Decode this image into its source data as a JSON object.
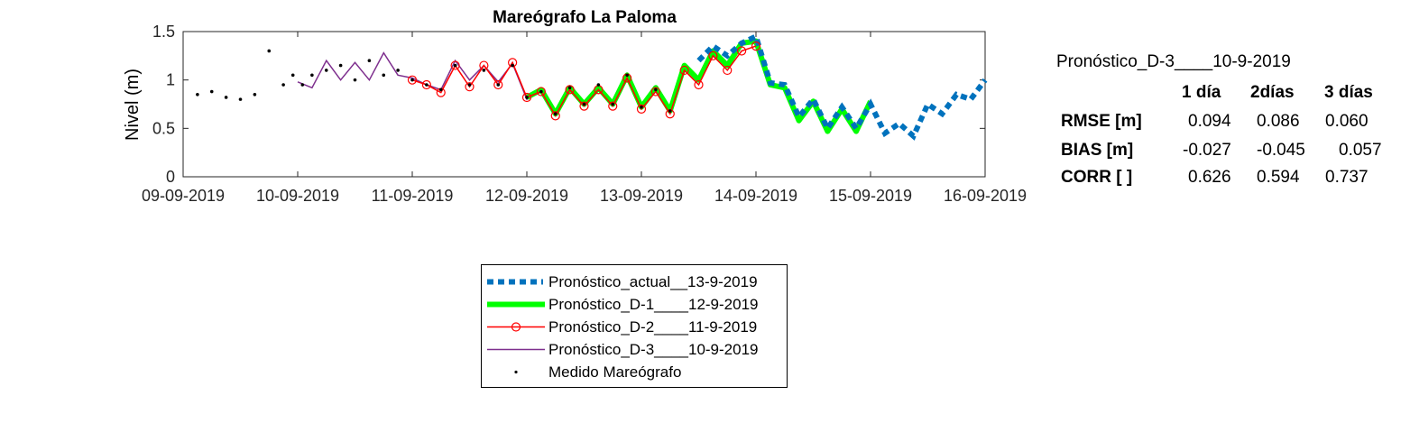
{
  "chart_data": {
    "type": "line",
    "title": "Mareógrafo La Paloma",
    "xlabel": "",
    "ylabel": "Nivel (m)",
    "ylim": [
      0,
      1.5
    ],
    "y_ticks": [
      "0",
      "0.5",
      "1",
      "1.5"
    ],
    "xlim": [
      "2019-09-09",
      "2019-09-16"
    ],
    "x_ticks": [
      "09-09-2019",
      "10-09-2019",
      "11-09-2019",
      "12-09-2019",
      "13-09-2019",
      "14-09-2019",
      "15-09-2019",
      "16-09-2019"
    ],
    "grid": false,
    "legend_position": "below",
    "series": [
      {
        "name": "Pronóstico_actual__13-9-2019",
        "style": "dotted-thick",
        "color": "#0072BD",
        "x": [
          "2019-09-13 12:00",
          "2019-09-13 15:00",
          "2019-09-13 18:00",
          "2019-09-13 21:00",
          "2019-09-14 00:00",
          "2019-09-14 03:00",
          "2019-09-14 06:00",
          "2019-09-14 09:00",
          "2019-09-14 12:00",
          "2019-09-14 15:00",
          "2019-09-14 18:00",
          "2019-09-14 21:00",
          "2019-09-15 00:00",
          "2019-09-15 03:00",
          "2019-09-15 06:00",
          "2019-09-15 09:00",
          "2019-09-15 12:00",
          "2019-09-15 15:00",
          "2019-09-15 18:00",
          "2019-09-15 21:00",
          "2019-09-16 00:00"
        ],
        "values": [
          1.2,
          1.35,
          1.25,
          1.38,
          1.45,
          0.97,
          0.95,
          0.62,
          0.8,
          0.5,
          0.72,
          0.5,
          0.75,
          0.45,
          0.55,
          0.42,
          0.75,
          0.65,
          0.85,
          0.8,
          1.0
        ]
      },
      {
        "name": "Pronóstico_D-1____12-9-2019",
        "style": "solid-thick",
        "color": "#00FF00",
        "x": [
          "2019-09-12 00:00",
          "2019-09-12 03:00",
          "2019-09-12 06:00",
          "2019-09-12 09:00",
          "2019-09-12 12:00",
          "2019-09-12 15:00",
          "2019-09-12 18:00",
          "2019-09-12 21:00",
          "2019-09-13 00:00",
          "2019-09-13 03:00",
          "2019-09-13 06:00",
          "2019-09-13 09:00",
          "2019-09-13 12:00",
          "2019-09-13 15:00",
          "2019-09-13 18:00",
          "2019-09-13 21:00",
          "2019-09-14 00:00",
          "2019-09-14 03:00",
          "2019-09-14 06:00",
          "2019-09-14 09:00",
          "2019-09-14 12:00",
          "2019-09-14 15:00",
          "2019-09-14 18:00",
          "2019-09-14 21:00",
          "2019-09-15 00:00"
        ],
        "values": [
          0.82,
          0.9,
          0.65,
          0.92,
          0.75,
          0.92,
          0.75,
          1.05,
          0.72,
          0.92,
          0.68,
          1.15,
          1.0,
          1.3,
          1.15,
          1.38,
          1.4,
          0.95,
          0.92,
          0.58,
          0.78,
          0.47,
          0.7,
          0.47,
          0.78
        ]
      },
      {
        "name": "Pronóstico_D-2____11-9-2019",
        "style": "line-circle",
        "color": "#FF0000",
        "x": [
          "2019-09-11 00:00",
          "2019-09-11 03:00",
          "2019-09-11 06:00",
          "2019-09-11 09:00",
          "2019-09-11 12:00",
          "2019-09-11 15:00",
          "2019-09-11 18:00",
          "2019-09-11 21:00",
          "2019-09-12 00:00",
          "2019-09-12 03:00",
          "2019-09-12 06:00",
          "2019-09-12 09:00",
          "2019-09-12 12:00",
          "2019-09-12 15:00",
          "2019-09-12 18:00",
          "2019-09-12 21:00",
          "2019-09-13 00:00",
          "2019-09-13 03:00",
          "2019-09-13 06:00",
          "2019-09-13 09:00",
          "2019-09-13 12:00",
          "2019-09-13 15:00",
          "2019-09-13 18:00",
          "2019-09-13 21:00",
          "2019-09-14 00:00"
        ],
        "values": [
          1.0,
          0.95,
          0.87,
          1.15,
          0.93,
          1.15,
          0.95,
          1.18,
          0.82,
          0.88,
          0.63,
          0.9,
          0.73,
          0.9,
          0.73,
          1.02,
          0.7,
          0.88,
          0.65,
          1.1,
          0.95,
          1.25,
          1.1,
          1.3,
          1.35
        ]
      },
      {
        "name": "Pronóstico_D-3____10-9-2019",
        "style": "solid-thin",
        "color": "#7E2F8E",
        "x": [
          "2019-09-10 00:00",
          "2019-09-10 03:00",
          "2019-09-10 06:00",
          "2019-09-10 09:00",
          "2019-09-10 12:00",
          "2019-09-10 15:00",
          "2019-09-10 18:00",
          "2019-09-10 21:00",
          "2019-09-11 00:00",
          "2019-09-11 03:00",
          "2019-09-11 06:00",
          "2019-09-11 09:00",
          "2019-09-11 12:00",
          "2019-09-11 15:00",
          "2019-09-11 18:00",
          "2019-09-11 21:00",
          "2019-09-12 00:00",
          "2019-09-12 03:00",
          "2019-09-12 06:00",
          "2019-09-12 09:00",
          "2019-09-12 12:00",
          "2019-09-12 15:00",
          "2019-09-12 18:00",
          "2019-09-12 21:00",
          "2019-09-13 00:00"
        ],
        "values": [
          0.98,
          0.92,
          1.2,
          1.0,
          1.18,
          1.0,
          1.28,
          1.05,
          1.02,
          0.95,
          0.9,
          1.2,
          1.0,
          1.15,
          0.98,
          1.17,
          0.8,
          0.88,
          0.65,
          0.92,
          0.75,
          0.92,
          0.75,
          1.05,
          0.72
        ]
      },
      {
        "name": "Medido Mareógrafo",
        "style": "points",
        "color": "#000000",
        "x": [
          "2019-09-09 03:00",
          "2019-09-09 06:00",
          "2019-09-09 09:00",
          "2019-09-09 12:00",
          "2019-09-09 15:00",
          "2019-09-09 18:00",
          "2019-09-09 21:00",
          "2019-09-09 23:00",
          "2019-09-10 01:00",
          "2019-09-10 03:00",
          "2019-09-10 06:00",
          "2019-09-10 09:00",
          "2019-09-10 12:00",
          "2019-09-10 15:00",
          "2019-09-10 18:00",
          "2019-09-10 21:00",
          "2019-09-11 00:00",
          "2019-09-11 03:00",
          "2019-09-11 06:00",
          "2019-09-11 09:00",
          "2019-09-11 12:00",
          "2019-09-11 15:00",
          "2019-09-11 18:00",
          "2019-09-11 21:00",
          "2019-09-12 00:00",
          "2019-09-12 03:00",
          "2019-09-12 06:00",
          "2019-09-12 09:00",
          "2019-09-12 12:00",
          "2019-09-12 15:00",
          "2019-09-12 18:00",
          "2019-09-12 21:00",
          "2019-09-13 00:00",
          "2019-09-13 03:00",
          "2019-09-13 06:00"
        ],
        "values": [
          0.85,
          0.88,
          0.82,
          0.8,
          0.85,
          1.3,
          0.95,
          1.05,
          0.95,
          1.05,
          1.1,
          1.15,
          1.0,
          1.2,
          1.05,
          1.1,
          1.0,
          0.95,
          0.9,
          1.15,
          0.95,
          1.1,
          0.95,
          1.15,
          0.82,
          0.88,
          0.65,
          0.92,
          0.75,
          0.95,
          0.75,
          1.05,
          0.72,
          0.9,
          0.68
        ]
      }
    ]
  },
  "stats": {
    "title": "Pronóstico_D-3____10-9-2019",
    "columns": [
      "1 día",
      "2días",
      "3 días"
    ],
    "rows": [
      {
        "label": "RMSE [m]",
        "values": [
          "0.094",
          "0.086",
          "0.060"
        ]
      },
      {
        "label": "BIAS [m]",
        "values": [
          "-0.027",
          "-0.045",
          "0.057"
        ]
      },
      {
        "label": "CORR [  ]",
        "values": [
          "0.626",
          "0.594",
          "0.737"
        ]
      }
    ]
  }
}
